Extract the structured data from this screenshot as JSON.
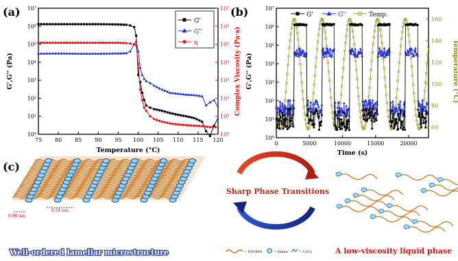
{
  "panels": {
    "a": {
      "label": "(a)"
    },
    "b": {
      "label": "(b)"
    },
    "c": {
      "label": "(c)"
    }
  },
  "chart_data": [
    {
      "type": "line",
      "panel": "a",
      "xlabel": "Temperature (°C)",
      "ylabel": "G',G'' (Pa)",
      "y2label": "Complex Viscosity (Pa·s)",
      "xlim": [
        75,
        120
      ],
      "ylim": [
        1,
        10000000
      ],
      "y2lim": [
        1,
        10000000
      ],
      "yscale": "log",
      "y2scale": "log",
      "x_ticks": [
        "75",
        "80",
        "85",
        "90",
        "95",
        "100",
        "105",
        "110",
        "115",
        "120"
      ],
      "y_ticks": [
        "10⁰",
        "10¹",
        "10²",
        "10³",
        "10⁴",
        "10⁵",
        "10⁶",
        "10⁷"
      ],
      "legend": [
        "G'",
        "G''",
        "η"
      ],
      "legend_position": "top-right",
      "colors": {
        "G'": "#000000",
        "G''": "#1a2bd6",
        "eta": "#e01818",
        "y2axis": "#e01818"
      },
      "series": [
        {
          "name": "G'",
          "axis": "left",
          "marker": "square",
          "x": [
            75,
            80,
            85,
            90,
            95,
            97,
            98,
            99,
            99.5,
            100,
            100.5,
            101,
            101.5,
            102,
            103,
            104,
            106,
            108,
            110,
            112,
            114,
            116,
            117,
            118,
            119,
            120
          ],
          "y": [
            1300000,
            1300000,
            1300000,
            1300000,
            1250000,
            1200000,
            1100000,
            900000,
            300000,
            2000,
            800,
            200,
            80,
            40,
            30,
            25,
            20,
            15,
            12,
            10,
            8,
            5,
            1.5,
            0.8,
            3,
            8
          ]
        },
        {
          "name": "G''",
          "axis": "left",
          "marker": "triangle",
          "x": [
            75,
            80,
            85,
            90,
            95,
            97,
            98,
            99,
            99.5,
            100,
            100.5,
            101,
            101.5,
            102,
            103,
            104,
            106,
            108,
            110,
            112,
            114,
            116,
            117,
            118,
            119,
            120
          ],
          "y": [
            30000,
            31000,
            30000,
            30000,
            31000,
            32000,
            40000,
            100000,
            150000,
            40000,
            5000,
            2000,
            1200,
            900,
            700,
            500,
            300,
            200,
            180,
            160,
            150,
            130,
            40,
            60,
            80,
            30
          ]
        },
        {
          "name": "η",
          "axis": "right",
          "marker": "circle",
          "x": [
            75,
            80,
            85,
            90,
            95,
            97,
            98,
            99,
            99.5,
            100,
            100.5,
            101,
            101.5,
            102,
            103,
            104,
            106,
            108,
            110,
            112,
            114,
            116,
            118,
            120
          ],
          "y": [
            120000,
            120000,
            120000,
            120000,
            120000,
            115000,
            110000,
            100000,
            90000,
            8000,
            300,
            80,
            30,
            20,
            10,
            7,
            5,
            4,
            3.5,
            3.2,
            3,
            2.8,
            2.5,
            2.5
          ]
        }
      ]
    },
    {
      "type": "line",
      "panel": "b",
      "xlabel": "Time (s)",
      "ylabel": "G',G'' (Pa)",
      "y2label": "Temperature (°C)",
      "xlim": [
        0,
        23000
      ],
      "ylim": [
        1,
        10000000
      ],
      "y2lim": [
        50,
        170
      ],
      "yscale": "log",
      "x_ticks": [
        "0",
        "5000",
        "10000",
        "15000",
        "20000"
      ],
      "y_ticks": [
        "10⁰",
        "10¹",
        "10²",
        "10³",
        "10⁴",
        "10⁵",
        "10⁶",
        "10⁷"
      ],
      "y2_ticks": [
        "60",
        "80",
        "100",
        "120",
        "140",
        "160"
      ],
      "legend": [
        "G'",
        "G''",
        "Temp."
      ],
      "legend_position": "top",
      "colors": {
        "G'": "#000000",
        "G''": "#1a2bd6",
        "Temp.": "#9a9a22",
        "y2axis": "#8a8a10"
      },
      "cycle": {
        "period_s": 4200,
        "first_peak_s": 2700,
        "temp_min": 58,
        "temp_max": 160,
        "cycles": 5,
        "Gp_solid_Pa": 1300000,
        "Gpp_solid_Pa": 40000,
        "Gp_liquid_Pa": 10,
        "Gpp_liquid_Pa": 40
      }
    }
  ],
  "panel_c": {
    "cycle_text": "Sharp Phase Transitions",
    "left_caption": "Well-ordered lamellar microstructure",
    "right_caption": "A low-viscosity liquid phase",
    "dim1": "0.98 nm",
    "dim2": "6.54 nm",
    "legend": [
      {
        "icon": "chain-icon",
        "label": "= PPG800"
      },
      {
        "icon": "ring-icon",
        "label": "= Dimer"
      },
      {
        "icon": "crystal-icon",
        "label": "= UrCy"
      }
    ]
  }
}
